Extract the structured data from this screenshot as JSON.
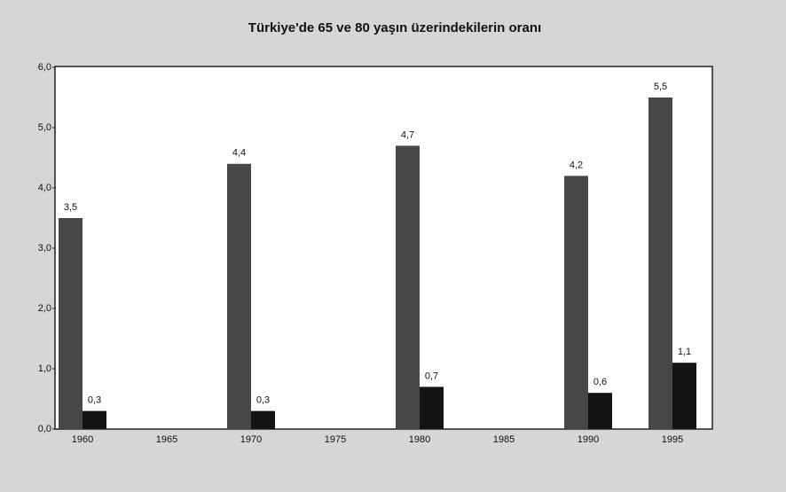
{
  "chart_data": {
    "type": "bar",
    "title": "Türkiye'de 65 ve 80 yaşın üzerindekilerin oranı",
    "categories": [
      "1960",
      "1965",
      "1970",
      "1975",
      "1980",
      "1985",
      "1990",
      "1995"
    ],
    "series": [
      {
        "color": "#474747",
        "values": [
          3.5,
          null,
          4.4,
          null,
          4.7,
          null,
          4.2,
          5.5
        ],
        "value_labels": [
          "3,5",
          null,
          "4,4",
          null,
          "4,7",
          null,
          "4,2",
          "5,5"
        ]
      },
      {
        "color": "#141414",
        "values": [
          0.3,
          null,
          0.3,
          null,
          0.7,
          null,
          0.6,
          1.1
        ],
        "value_labels": [
          "0,3",
          null,
          "0,3",
          null,
          "0,7",
          null,
          "0,6",
          "1,1"
        ]
      }
    ],
    "ylim": [
      0,
      6
    ],
    "yticks": [
      {
        "value": 0,
        "label": "0,0"
      },
      {
        "value": 1,
        "label": "1,0"
      },
      {
        "value": 2,
        "label": "2,0"
      },
      {
        "value": 3,
        "label": "3,0"
      },
      {
        "value": 4,
        "label": "4,0"
      },
      {
        "value": 5,
        "label": "5,0"
      },
      {
        "value": 6,
        "label": "6,0"
      }
    ],
    "grid": false
  }
}
